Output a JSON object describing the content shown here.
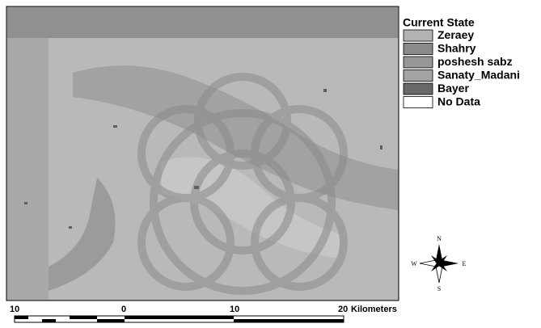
{
  "legend": {
    "title": "Current State",
    "items": [
      {
        "label": "Zeraey",
        "color": "#b3b3b3"
      },
      {
        "label": "Shahry",
        "color": "#8a8a8a"
      },
      {
        "label": "poshesh sabz",
        "color": "#979797"
      },
      {
        "label": "Sanaty_Madani",
        "color": "#a4a4a4"
      },
      {
        "label": "Bayer",
        "color": "#686868"
      },
      {
        "label": "No Data",
        "color": "#ffffff"
      }
    ]
  },
  "compass": {
    "north": "N",
    "south": "S",
    "west": "W",
    "east": "E"
  },
  "scale_bar": {
    "labels": [
      "10",
      "0",
      "10",
      "20"
    ],
    "unit": "Kilometers"
  }
}
